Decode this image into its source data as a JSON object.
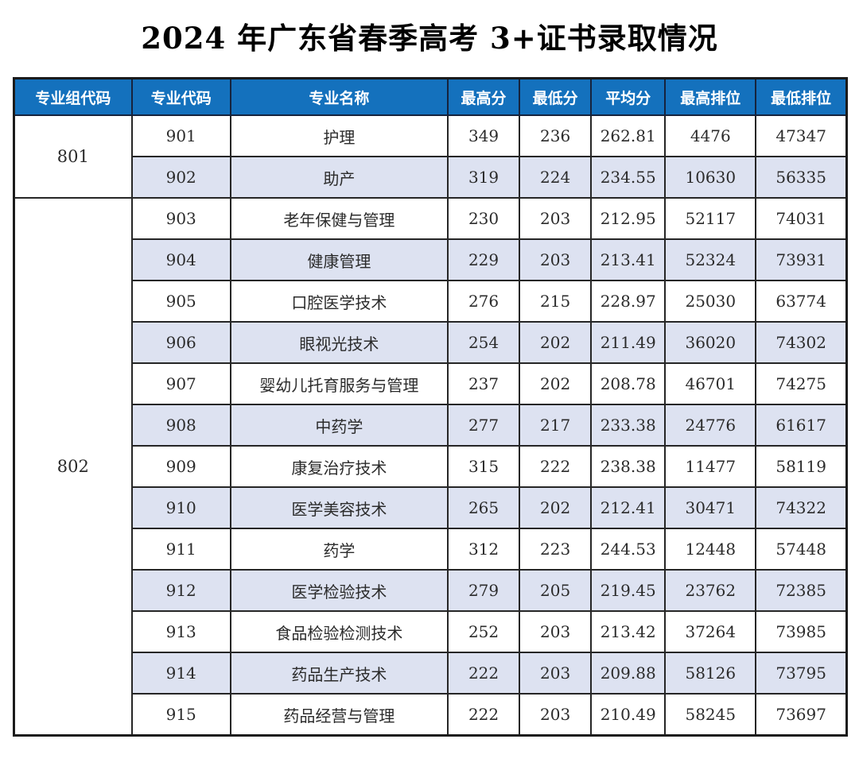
{
  "page": {
    "title": "2024 年广东省春季高考 3+证书录取情况"
  },
  "table": {
    "headers": [
      "专业组代码",
      "专业代码",
      "专业名称",
      "最高分",
      "最低分",
      "平均分",
      "最高排位",
      "最低排位"
    ],
    "colors": {
      "header_bg": "#1471bd",
      "header_text": "#ffffff",
      "row_bg": "#ffffff",
      "row_alt_bg": "#dde2f1",
      "border": "#1b1b1b"
    },
    "groups": [
      {
        "code": "801",
        "rows": [
          {
            "code": "901",
            "name": "护理",
            "max_score": "349",
            "min_score": "236",
            "avg_score": "262.81",
            "max_rank": "4476",
            "min_rank": "47347"
          },
          {
            "code": "902",
            "name": "助产",
            "max_score": "319",
            "min_score": "224",
            "avg_score": "234.55",
            "max_rank": "10630",
            "min_rank": "56335"
          }
        ]
      },
      {
        "code": "802",
        "rows": [
          {
            "code": "903",
            "name": "老年保健与管理",
            "max_score": "230",
            "min_score": "203",
            "avg_score": "212.95",
            "max_rank": "52117",
            "min_rank": "74031"
          },
          {
            "code": "904",
            "name": "健康管理",
            "max_score": "229",
            "min_score": "203",
            "avg_score": "213.41",
            "max_rank": "52324",
            "min_rank": "73931"
          },
          {
            "code": "905",
            "name": "口腔医学技术",
            "max_score": "276",
            "min_score": "215",
            "avg_score": "228.97",
            "max_rank": "25030",
            "min_rank": "63774"
          },
          {
            "code": "906",
            "name": "眼视光技术",
            "max_score": "254",
            "min_score": "202",
            "avg_score": "211.49",
            "max_rank": "36020",
            "min_rank": "74302"
          },
          {
            "code": "907",
            "name": "婴幼儿托育服务与管理",
            "max_score": "237",
            "min_score": "202",
            "avg_score": "208.78",
            "max_rank": "46701",
            "min_rank": "74275"
          },
          {
            "code": "908",
            "name": "中药学",
            "max_score": "277",
            "min_score": "217",
            "avg_score": "233.38",
            "max_rank": "24776",
            "min_rank": "61617"
          },
          {
            "code": "909",
            "name": "康复治疗技术",
            "max_score": "315",
            "min_score": "222",
            "avg_score": "238.38",
            "max_rank": "11477",
            "min_rank": "58119"
          },
          {
            "code": "910",
            "name": "医学美容技术",
            "max_score": "265",
            "min_score": "202",
            "avg_score": "212.41",
            "max_rank": "30471",
            "min_rank": "74322"
          },
          {
            "code": "911",
            "name": "药学",
            "max_score": "312",
            "min_score": "223",
            "avg_score": "244.53",
            "max_rank": "12448",
            "min_rank": "57448"
          },
          {
            "code": "912",
            "name": "医学检验技术",
            "max_score": "279",
            "min_score": "205",
            "avg_score": "219.45",
            "max_rank": "23762",
            "min_rank": "72385"
          },
          {
            "code": "913",
            "name": "食品检验检测技术",
            "max_score": "252",
            "min_score": "203",
            "avg_score": "213.42",
            "max_rank": "37264",
            "min_rank": "73985"
          },
          {
            "code": "914",
            "name": "药品生产技术",
            "max_score": "222",
            "min_score": "203",
            "avg_score": "209.88",
            "max_rank": "58126",
            "min_rank": "73795"
          },
          {
            "code": "915",
            "name": "药品经营与管理",
            "max_score": "222",
            "min_score": "203",
            "avg_score": "210.49",
            "max_rank": "58245",
            "min_rank": "73697"
          }
        ]
      }
    ]
  }
}
